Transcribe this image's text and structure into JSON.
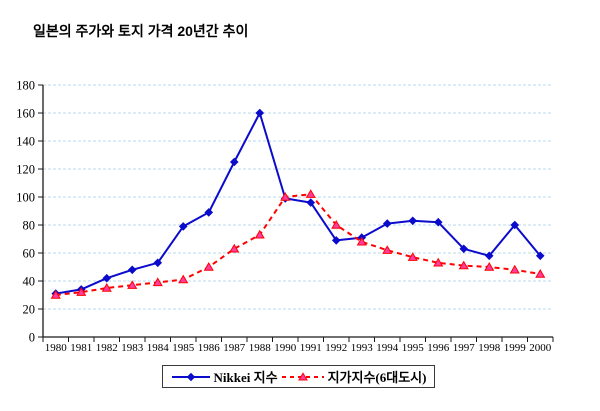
{
  "chart_data": {
    "type": "line",
    "title": "일본의 주가와 토지 가격 20년간 추이",
    "xlabel": "",
    "ylabel": "",
    "ylim": [
      0,
      180
    ],
    "ytick_step": 20,
    "grid": true,
    "gridline_color": "#b9d8ef",
    "axis_color": "#1a1a1a",
    "legend_position": "bottom",
    "categories": [
      "1980",
      "1981",
      "1982",
      "1983",
      "1984",
      "1985",
      "1986",
      "1987",
      "1988",
      "1990",
      "1991",
      "1992",
      "1993",
      "1994",
      "1995",
      "1996",
      "1997",
      "1998",
      "1999",
      "2000"
    ],
    "series": [
      {
        "name": "Nikkei 지수",
        "color": "#0b0bcc",
        "line_style": "solid",
        "marker": "diamond",
        "marker_fill": "#0b0bcc",
        "values": [
          31,
          34,
          42,
          48,
          53,
          79,
          89,
          125,
          160,
          99,
          96,
          69,
          71,
          81,
          83,
          82,
          63,
          58,
          80,
          58
        ]
      },
      {
        "name": "지가지수(6대도시)",
        "color": "#ff0000",
        "line_style": "dashed",
        "marker": "triangle",
        "marker_fill": "#ff3d9e",
        "values": [
          30,
          32,
          35,
          37,
          39,
          41,
          50,
          63,
          73,
          100,
          102,
          80,
          68,
          62,
          57,
          53,
          51,
          50,
          48,
          45
        ]
      }
    ]
  }
}
